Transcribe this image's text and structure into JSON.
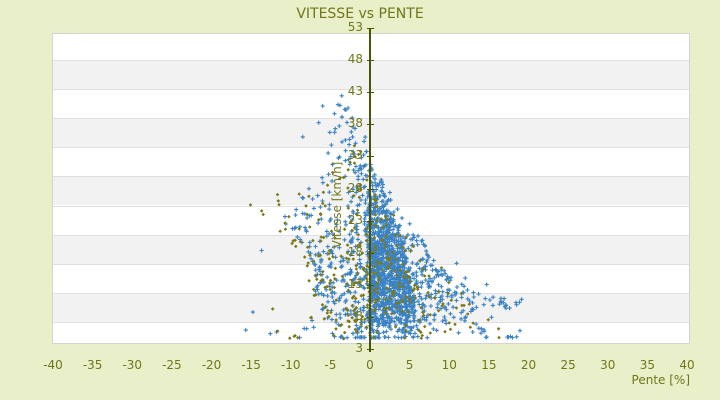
{
  "title": "VITESSE vs PENTE",
  "axes": {
    "x": {
      "label": "Pente [%]",
      "min": -40,
      "max": 40,
      "ticks": [
        -40,
        -35,
        -30,
        -25,
        -20,
        -15,
        -10,
        -5,
        0,
        5,
        10,
        15,
        20,
        25,
        30,
        35,
        40
      ]
    },
    "y": {
      "label": "Vitesse [km/h]",
      "min": 3,
      "max": 53,
      "ticks": [
        3,
        8,
        13,
        18,
        23,
        28,
        33,
        38,
        43,
        48,
        53
      ],
      "zero_line_at_x": 0
    }
  },
  "colors": {
    "background": "#e9efc8",
    "plot_background": "#ffffff",
    "band_gray": "#f2f2f2",
    "band_line": "#e0e0e0",
    "plot_border": "#d4d4d4",
    "text_olive": "#71761b",
    "zero_line": "#4b5404",
    "series_blue": "#3a82c4",
    "series_olive": "#7c7a16"
  },
  "chart_data": {
    "type": "scatter",
    "title": "VITESSE vs PENTE",
    "xlabel": "Pente [%]",
    "ylabel": "Vitesse [km/h]",
    "xlim": [
      -40,
      40
    ],
    "ylim": [
      3,
      53
    ],
    "x_ticks": [
      -40,
      -35,
      -30,
      -25,
      -20,
      -15,
      -10,
      -5,
      0,
      5,
      10,
      15,
      20,
      25,
      30,
      35,
      40
    ],
    "y_ticks": [
      3,
      8,
      13,
      18,
      23,
      28,
      33,
      38,
      43,
      48,
      53
    ],
    "grid": "horizontal-bands-alternating",
    "legend": "none",
    "vertical_reference_line_x": 0,
    "seed": 1337,
    "row_format": "[y, x_min, x_max, count, core_x_min, core_x_max, y_jitter]",
    "series": [
      {
        "name": "points-bleus",
        "marker": "plus",
        "color": "#3a82c4",
        "core_fraction": 0.62,
        "density_rows": [
          [
            5,
            -15.5,
            19,
            40,
            -4,
            6,
            0.12
          ],
          [
            5.7,
            -13,
            17.5,
            26,
            -3,
            6,
            0.2
          ],
          [
            6.4,
            -11,
            15,
            30,
            -2,
            6,
            0.35
          ],
          [
            7.2,
            -9,
            13.5,
            52,
            -1,
            6,
            0.45
          ],
          [
            8,
            -7.5,
            12,
            78,
            -0.5,
            5.5,
            0.5
          ],
          [
            9,
            -6.5,
            13,
            92,
            -0.5,
            5.5,
            0.5
          ],
          [
            10,
            -6,
            19,
            102,
            0,
            5.5,
            0.5
          ],
          [
            11,
            -6.5,
            16.5,
            108,
            0,
            5.5,
            0.5
          ],
          [
            12,
            -7,
            14,
            112,
            0,
            5,
            0.5
          ],
          [
            13,
            -7,
            12,
            112,
            0,
            5,
            0.5
          ],
          [
            14,
            -6.5,
            10.5,
            110,
            0,
            5,
            0.5
          ],
          [
            15,
            -7,
            9.5,
            107,
            0,
            4.5,
            0.5
          ],
          [
            16,
            -7.5,
            8.5,
            98,
            0,
            4.5,
            0.5
          ],
          [
            17,
            -8,
            8,
            92,
            0,
            4.5,
            0.5
          ],
          [
            18,
            -8.5,
            7.5,
            86,
            -0.5,
            4,
            0.5
          ],
          [
            19,
            -9,
            7,
            78,
            -0.5,
            4,
            0.5
          ],
          [
            20,
            -9.5,
            6.5,
            70,
            -0.5,
            4,
            0.5
          ],
          [
            21,
            -10,
            6,
            62,
            -0.5,
            3.5,
            0.5
          ],
          [
            22,
            -10.5,
            5.5,
            54,
            -1,
            3.5,
            0.5
          ],
          [
            23,
            -11,
            5,
            47,
            -1,
            3,
            0.5
          ],
          [
            24,
            -11.5,
            4.5,
            39,
            -1,
            3,
            0.5
          ],
          [
            25,
            -12,
            4,
            32,
            -1.5,
            2.5,
            0.5
          ],
          [
            26,
            -10.5,
            3.5,
            26,
            -1.5,
            2.5,
            0.5
          ],
          [
            27,
            -9.5,
            3,
            21,
            -1.5,
            2,
            0.5
          ],
          [
            28,
            -8.5,
            3,
            17,
            -2,
            2,
            0.5
          ],
          [
            29,
            -7.5,
            2.5,
            14,
            -2,
            1.5,
            0.5
          ],
          [
            30,
            -7,
            2,
            12,
            -2.5,
            1,
            0.5
          ],
          [
            31,
            -6.5,
            1.5,
            10,
            -2.5,
            0.5,
            0.5
          ],
          [
            32,
            -6,
            1,
            8,
            -3,
            0,
            0.5
          ],
          [
            33,
            -5.5,
            0.5,
            7,
            -3.5,
            -0.5,
            0.5
          ],
          [
            34,
            -5.5,
            0,
            6,
            -3.5,
            -0.5,
            0.5
          ],
          [
            35,
            -5.5,
            -0.5,
            5,
            -4,
            -1,
            0.5
          ],
          [
            36,
            -6,
            -0.5,
            4,
            -4,
            -1,
            0.5
          ],
          [
            37,
            -5.5,
            -1,
            4,
            -4,
            -1.5,
            0.5
          ],
          [
            38,
            -6.5,
            -1,
            3,
            -5,
            -2,
            0.5
          ],
          [
            39,
            -5,
            -1.5,
            3,
            -4,
            -2,
            0.5
          ],
          [
            40,
            -6,
            -2,
            2,
            -5,
            -2.5,
            0.5
          ],
          [
            41,
            -4.5,
            -2.5,
            2,
            -4,
            -3,
            0.5
          ]
        ],
        "outlier_points": [
          [
            -3.7,
            42.6
          ],
          [
            -2.9,
            40.7
          ],
          [
            -6.1,
            41.0
          ],
          [
            -4.6,
            39.8
          ],
          [
            -6.6,
            38.4
          ],
          [
            -5.2,
            36.9
          ],
          [
            -8.6,
            36.2
          ],
          [
            14.6,
            13.2
          ],
          [
            16.8,
            11.0
          ],
          [
            18.3,
            10.4
          ],
          [
            19.0,
            10.9
          ],
          [
            18.8,
            6.0
          ],
          [
            17.6,
            5.1
          ],
          [
            -15.8,
            6.1
          ],
          [
            -14.9,
            8.9
          ],
          [
            -13.8,
            18.5
          ],
          [
            12.9,
            9.3
          ],
          [
            15.2,
            8.1
          ],
          [
            10.8,
            16.5
          ],
          [
            11.9,
            14.2
          ],
          [
            13.6,
            6.4
          ],
          [
            12.6,
            9.0
          ]
        ]
      },
      {
        "name": "points-olive",
        "marker": "diamond",
        "color": "#7c7a16",
        "core_fraction": 0.3,
        "density_rows": [
          [
            5,
            -14,
            18,
            12,
            -6,
            8,
            0.3
          ],
          [
            6,
            -12,
            15,
            12,
            -5,
            8,
            0.4
          ],
          [
            7,
            -10,
            13,
            14,
            -4,
            7,
            0.5
          ],
          [
            8,
            -9,
            12,
            16,
            -3,
            7,
            0.5
          ],
          [
            9,
            -8,
            12,
            18,
            -3,
            7,
            0.5
          ],
          [
            10,
            -8,
            13,
            19,
            -2,
            6,
            0.5
          ],
          [
            11,
            -8,
            11,
            19,
            -2,
            6,
            0.5
          ],
          [
            12,
            -8,
            10,
            19,
            -2,
            6,
            0.5
          ],
          [
            13,
            -8,
            9,
            19,
            -2,
            5,
            0.5
          ],
          [
            14,
            -8,
            8,
            18,
            -2,
            5,
            0.5
          ],
          [
            15,
            -9,
            8,
            17,
            -2,
            5,
            0.5
          ],
          [
            16,
            -9,
            7,
            16,
            -2,
            4,
            0.5
          ],
          [
            17,
            -9,
            7,
            15,
            -2,
            4,
            0.5
          ],
          [
            18,
            -10,
            6,
            14,
            -2,
            4,
            0.5
          ],
          [
            19,
            -10,
            6,
            13,
            -2,
            3,
            0.5
          ],
          [
            20,
            -11,
            5,
            12,
            -3,
            3,
            0.5
          ],
          [
            21,
            -11,
            5,
            11,
            -3,
            3,
            0.5
          ],
          [
            22,
            -12,
            4,
            10,
            -3,
            2,
            0.5
          ],
          [
            23,
            -12,
            4,
            9,
            -3,
            2,
            0.5
          ],
          [
            24,
            -13,
            3,
            8,
            -4,
            2,
            0.5
          ],
          [
            25,
            -14,
            3,
            7,
            -4,
            1,
            0.5
          ],
          [
            26,
            -12,
            2,
            6,
            -4,
            1,
            0.5
          ],
          [
            27,
            -10,
            2,
            5,
            -4,
            1,
            0.5
          ],
          [
            28,
            -8,
            1,
            4,
            -4,
            0,
            0.5
          ],
          [
            29,
            -7,
            1,
            3,
            -4,
            0,
            0.5
          ],
          [
            30,
            -6,
            0,
            3,
            -4,
            -1,
            0.5
          ],
          [
            31,
            -5,
            0,
            2,
            -4,
            -1,
            0.5
          ],
          [
            32,
            -4,
            -1,
            2,
            -3,
            -1,
            0.5
          ],
          [
            33,
            -3,
            -1,
            2,
            -3,
            -1.5,
            0.5
          ]
        ],
        "outlier_points": [
          [
            -15.2,
            25.6
          ],
          [
            -13.6,
            24.1
          ],
          [
            11.4,
            11.8
          ],
          [
            12.2,
            8.6
          ],
          [
            -2.1,
            34.8
          ],
          [
            -1.3,
            33.9
          ],
          [
            9.8,
            13.5
          ],
          [
            -12.4,
            9.4
          ],
          [
            14.8,
            7.7
          ],
          [
            16.1,
            6.3
          ],
          [
            -11.8,
            27.2
          ],
          [
            8.9,
            15.8
          ]
        ]
      }
    ]
  }
}
